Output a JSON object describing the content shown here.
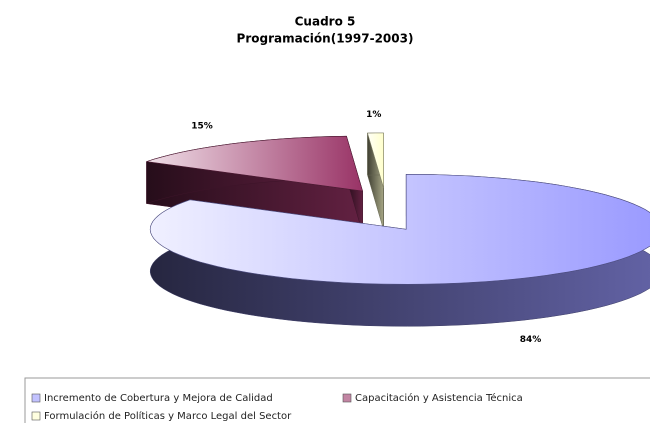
{
  "chart_data": {
    "type": "pie",
    "title": "Cuadro 5",
    "subtitle": "Programación(1997-2003)",
    "categories": [
      "Incremento de Cobertura y Mejora de Calidad",
      "Capacitación y Asistencia Técnica",
      "Formulación de Políticas  y Marco Legal del Sector"
    ],
    "values": [
      84,
      15,
      1
    ],
    "value_labels": [
      "84%",
      "15%",
      "1%"
    ],
    "colors": [
      "#9999ff",
      "#993366",
      "#ffffcc"
    ],
    "legend": "bottom"
  }
}
